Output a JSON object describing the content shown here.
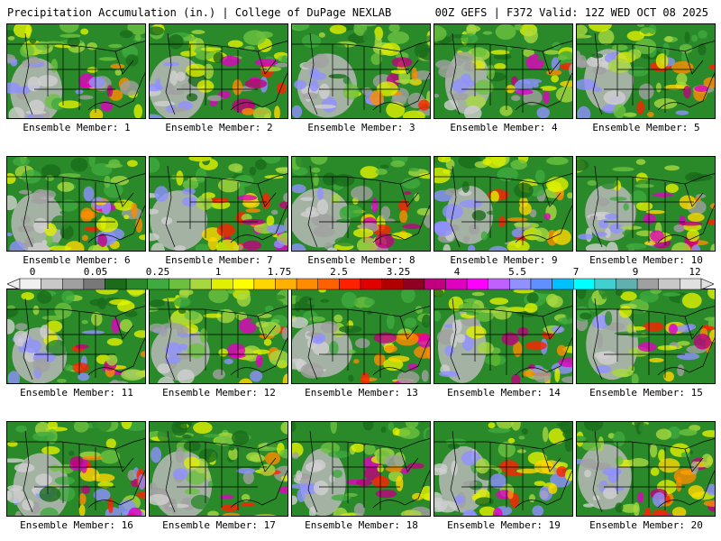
{
  "header": {
    "left": "Precipitation Accumulation (in.) | College of DuPage NEXLAB",
    "right": "00Z GEFS | F372 Valid: 12Z WED OCT 08 2025"
  },
  "panel_label_prefix": "Ensemble Member: ",
  "panels": [
    {
      "member": "1"
    },
    {
      "member": "2"
    },
    {
      "member": "3"
    },
    {
      "member": "4"
    },
    {
      "member": "5"
    },
    {
      "member": "6"
    },
    {
      "member": "7"
    },
    {
      "member": "8"
    },
    {
      "member": "9"
    },
    {
      "member": "10"
    },
    {
      "member": "11"
    },
    {
      "member": "12"
    },
    {
      "member": "13"
    },
    {
      "member": "14"
    },
    {
      "member": "15"
    },
    {
      "member": "16"
    },
    {
      "member": "17"
    },
    {
      "member": "18"
    },
    {
      "member": "19"
    },
    {
      "member": "20"
    }
  ],
  "colorbar": {
    "tick_labels": [
      "0",
      "0.05",
      "0.25",
      "1",
      "1.75",
      "2.5",
      "3.25",
      "4",
      "5.5",
      "7",
      "9",
      "12"
    ],
    "colors": [
      "#f0f0f0",
      "#c8c8c8",
      "#a0a0a0",
      "#787878",
      "#1a6b1a",
      "#2a8a2a",
      "#3faa3f",
      "#6cc040",
      "#a8d840",
      "#e0f000",
      "#ffff00",
      "#ffd700",
      "#ffb000",
      "#ff8c00",
      "#ff6000",
      "#ff2000",
      "#e00000",
      "#b00000",
      "#900020",
      "#c00080",
      "#e000c0",
      "#ff00ff",
      "#c060ff",
      "#9090ff",
      "#6090ff",
      "#00c0ff",
      "#00ffff",
      "#40d0d0",
      "#60b0b0",
      "#a0a0a0",
      "#c8c8c8",
      "#e0e0e0"
    ]
  }
}
